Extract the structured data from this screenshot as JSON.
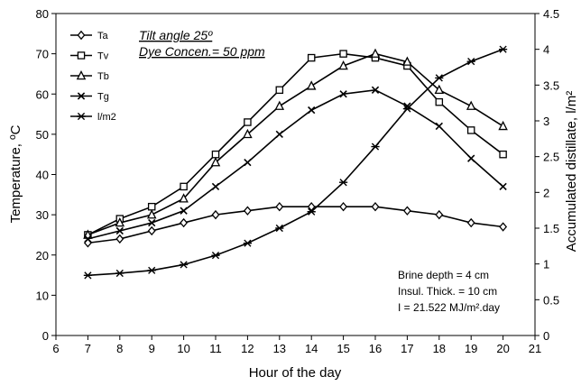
{
  "chart_data": {
    "type": "line",
    "xlabel": "Hour of the day",
    "ylabel": "Temperature, ºC",
    "y2label": "Accumulated distillate, l/m²",
    "xlim": [
      6,
      21
    ],
    "ylim": [
      0,
      80
    ],
    "y2lim": [
      0,
      4.5
    ],
    "x_ticks": [
      "6",
      "7",
      "8",
      "9",
      "10",
      "11",
      "12",
      "13",
      "14",
      "15",
      "16",
      "17",
      "18",
      "19",
      "20",
      "21"
    ],
    "y_ticks": [
      "0",
      "10",
      "20",
      "30",
      "40",
      "50",
      "60",
      "70",
      "80"
    ],
    "y2_ticks": [
      "0",
      "0.5",
      "1",
      "1.5",
      "2",
      "2.5",
      "3",
      "3.5",
      "4",
      "4.5"
    ],
    "grid": false,
    "legend_position": "top-left",
    "annotations": {
      "line1": "Tilt angle 25º",
      "line2": "Dye Concen.= 50 ppm"
    },
    "info": {
      "line1": "Brine depth = 4 cm",
      "line2": "Insul. Thick. = 10 cm",
      "line3": "I = 21.522  MJ/m².day"
    },
    "x": [
      7,
      8,
      9,
      10,
      11,
      12,
      13,
      14,
      15,
      16,
      17,
      18,
      19,
      20
    ],
    "series": [
      {
        "name": "Ta",
        "marker": "diamond",
        "axis": "left",
        "values": [
          23,
          24,
          26,
          28,
          30,
          31,
          32,
          32,
          32,
          32,
          31,
          30,
          28,
          27
        ]
      },
      {
        "name": "Tv",
        "marker": "square",
        "axis": "left",
        "values": [
          25,
          29,
          32,
          37,
          45,
          53,
          61,
          69,
          70,
          69,
          67,
          58,
          51,
          45
        ]
      },
      {
        "name": "Tb",
        "marker": "triangle",
        "axis": "left",
        "values": [
          25,
          28,
          30,
          34,
          43,
          50,
          57,
          62,
          67,
          70,
          68,
          61,
          57,
          52
        ]
      },
      {
        "name": "Tg",
        "marker": "x",
        "axis": "left",
        "values": [
          24,
          26,
          28,
          31,
          37,
          43,
          50,
          56,
          60,
          61,
          57,
          52,
          44,
          37
        ]
      },
      {
        "name": "l/m2",
        "marker": "star",
        "axis": "right",
        "values": [
          0.84,
          0.87,
          0.91,
          0.99,
          1.12,
          1.29,
          1.5,
          1.73,
          2.14,
          2.64,
          3.17,
          3.6,
          3.83,
          4.0
        ]
      }
    ]
  }
}
